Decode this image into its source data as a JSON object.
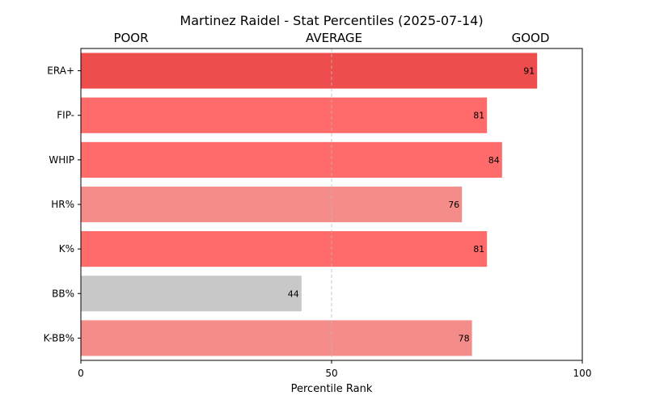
{
  "chart_data": {
    "type": "bar",
    "orientation": "horizontal",
    "title": "Martinez Raidel - Stat Percentiles (2025-07-14)",
    "xlabel": "Percentile Rank",
    "xlim": [
      0,
      100
    ],
    "xticks": [
      "0",
      "50",
      "100"
    ],
    "zone_labels": [
      "POOR",
      "AVERAGE",
      "GOOD"
    ],
    "reference_line": 50,
    "categories": [
      "ERA+",
      "FIP-",
      "WHIP",
      "HR%",
      "K%",
      "BB%",
      "K-BB%"
    ],
    "values": [
      91,
      81,
      84,
      76,
      81,
      44,
      78
    ],
    "bar_colors": [
      "#ee4d4d",
      "#ff6b6b",
      "#ff6b6b",
      "#f48c8a",
      "#ff6b6b",
      "#c8c8c8",
      "#f48c8a"
    ],
    "grid": false,
    "legend": "none"
  }
}
